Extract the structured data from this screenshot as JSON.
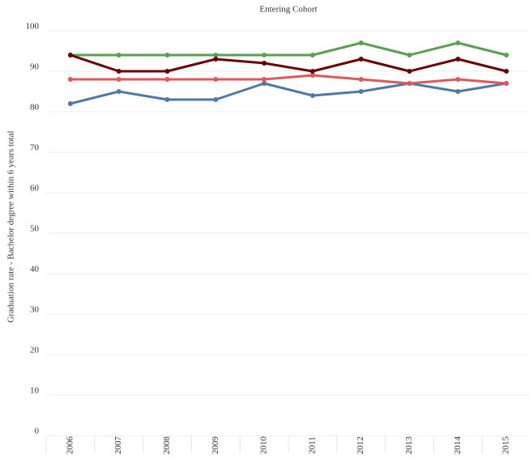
{
  "chart_data": {
    "type": "line",
    "title": "Entering Cohort",
    "y_label": "Graduation rate - Bachelor degree within 6 years  total",
    "categories": [
      "2006",
      "2007",
      "2008",
      "2009",
      "2010",
      "2011",
      "2012",
      "2013",
      "2014",
      "2015"
    ],
    "series": [
      {
        "color": "#4e79a7",
        "values": [
          82,
          85,
          83,
          83,
          87,
          84,
          85,
          87,
          85,
          87
        ]
      },
      {
        "color": "#e15759",
        "values": [
          88,
          88,
          88,
          88,
          88,
          89,
          88,
          87,
          88,
          87
        ]
      },
      {
        "color": "#59a14f",
        "values": [
          94,
          94,
          94,
          94,
          94,
          94,
          97,
          94,
          97,
          94
        ]
      },
      {
        "color": "#6b0000",
        "values": [
          94,
          90,
          90,
          93,
          92,
          90,
          93,
          90,
          93,
          90
        ]
      }
    ],
    "ylim": [
      0,
      100
    ],
    "yticks": [
      0,
      10,
      20,
      30,
      40,
      50,
      60,
      70,
      80,
      90,
      100
    ],
    "grid": true
  }
}
